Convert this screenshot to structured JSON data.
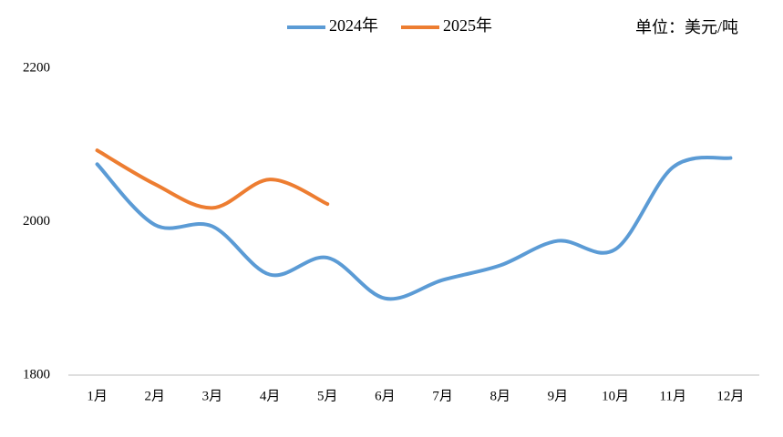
{
  "chart_data": {
    "type": "line",
    "annotation": "单位：美元/吨",
    "categories": [
      "1月",
      "2月",
      "3月",
      "4月",
      "5月",
      "6月",
      "7月",
      "8月",
      "9月",
      "10月",
      "11月",
      "12月"
    ],
    "series": [
      {
        "name": "2024年",
        "color": "#5b9bd5",
        "values": [
          2075,
          1996,
          1994,
          1931,
          1953,
          1900,
          1924,
          1943,
          1975,
          1964,
          2071,
          2083
        ]
      },
      {
        "name": "2025年",
        "color": "#ed7d31",
        "values": [
          2093,
          2049,
          2018,
          2055,
          2023,
          null,
          null,
          null,
          null,
          null,
          null,
          null
        ]
      }
    ],
    "ylim": [
      1800,
      2200
    ],
    "yticks": [
      1800,
      2000,
      2200
    ],
    "grid": false,
    "smooth": true
  }
}
